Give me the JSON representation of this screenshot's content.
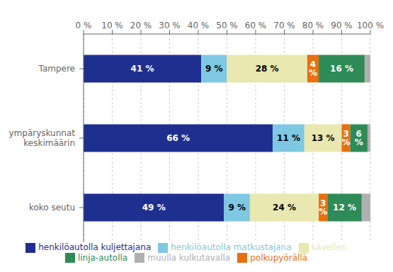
{
  "chart_data": {
    "type": "bar",
    "orientation": "horizontal",
    "stacked": true,
    "categories": [
      "koko seutu",
      "ympäryskunnat\nkeskimäärin",
      "Tampere"
    ],
    "series": [
      {
        "name": "henkilöautolla kuljettajana",
        "color": "#1f2f8f",
        "values": [
          49,
          66,
          41
        ],
        "value_labels": [
          "49 %",
          "66 %",
          "41 %"
        ]
      },
      {
        "name": "henkilöautolla matkustajana",
        "color": "#7ec8e3",
        "values": [
          9,
          11,
          9
        ],
        "value_labels": [
          "9 %",
          "11 %",
          "9 %"
        ]
      },
      {
        "name": "kävellen",
        "color": "#e8e8b0",
        "values": [
          24,
          13,
          28
        ],
        "value_labels": [
          "24 %",
          "13 %",
          "28 %"
        ]
      },
      {
        "name": "polkupyörällä",
        "color": "#e87010",
        "values": [
          3,
          3,
          4
        ],
        "value_labels": [
          "3 %",
          "3 %",
          "4 %"
        ]
      },
      {
        "name": "linja-autolla",
        "color": "#2e8b57",
        "values": [
          12,
          6,
          16
        ],
        "value_labels": [
          "12 %",
          "6 %",
          "16 %"
        ]
      },
      {
        "name": "muulla kulkutavalla",
        "color": "#b0b0b0",
        "values": [
          3,
          1,
          2
        ]
      }
    ],
    "xlim": [
      0,
      100
    ],
    "xticks": [
      {
        "value": 0,
        "label": "0 %"
      },
      {
        "value": 10,
        "label": "10 %"
      },
      {
        "value": 20,
        "label": "20 %"
      },
      {
        "value": 30,
        "label": "30 %"
      },
      {
        "value": 40,
        "label": "40 %"
      },
      {
        "value": 50,
        "label": "50 %"
      },
      {
        "value": 60,
        "label": "60 %"
      },
      {
        "value": 70,
        "label": "70 %"
      },
      {
        "value": 80,
        "label": "80 %"
      },
      {
        "value": 90,
        "label": "90 %"
      },
      {
        "value": 100,
        "label": "100 %"
      }
    ],
    "grid": true,
    "legend": "bottom",
    "data_labels": true
  }
}
